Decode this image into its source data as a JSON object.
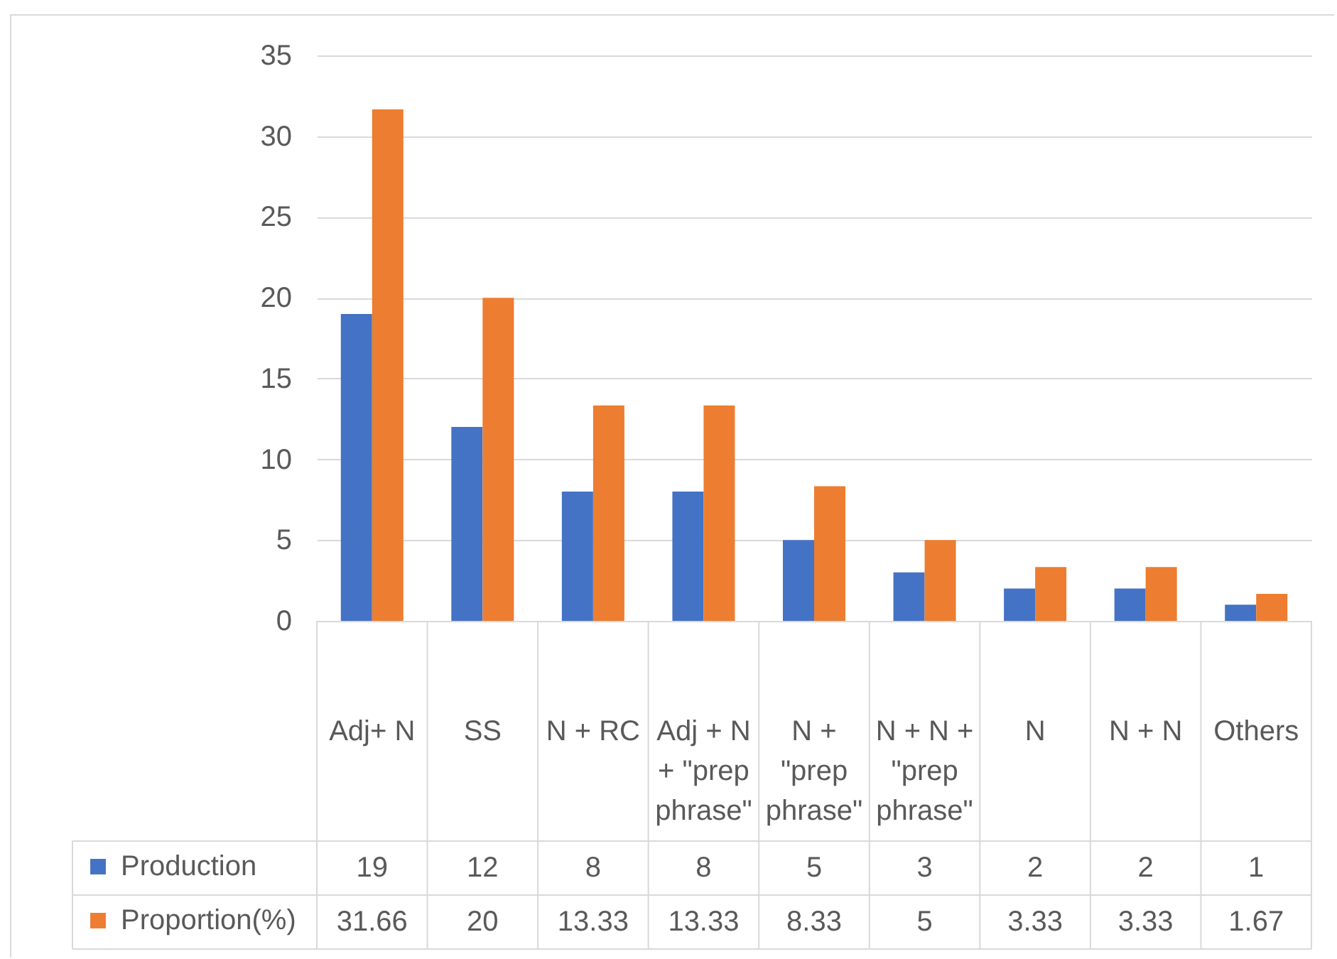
{
  "chart_data": {
    "type": "bar",
    "categories": [
      "Adj+ N",
      "SS",
      "N + RC",
      "Adj + N + \"prep phrase\"",
      "N + \"prep phrase\"",
      "N + N + \"prep phrase\"",
      "N",
      "N + N",
      "Others"
    ],
    "series": [
      {
        "name": "Production",
        "color": "#4472c4",
        "values": [
          19,
          12,
          8,
          8,
          5,
          3,
          2,
          2,
          1
        ]
      },
      {
        "name": "Proportion(%)",
        "color": "#ed7d31",
        "values": [
          31.66,
          20,
          13.33,
          13.33,
          8.33,
          5,
          3.33,
          3.33,
          1.67
        ]
      }
    ],
    "ylim": [
      0,
      35
    ],
    "yticks": [
      0,
      5,
      10,
      15,
      20,
      25,
      30,
      35
    ],
    "grid": "y",
    "legend": "bottom left",
    "data_labels": true
  }
}
